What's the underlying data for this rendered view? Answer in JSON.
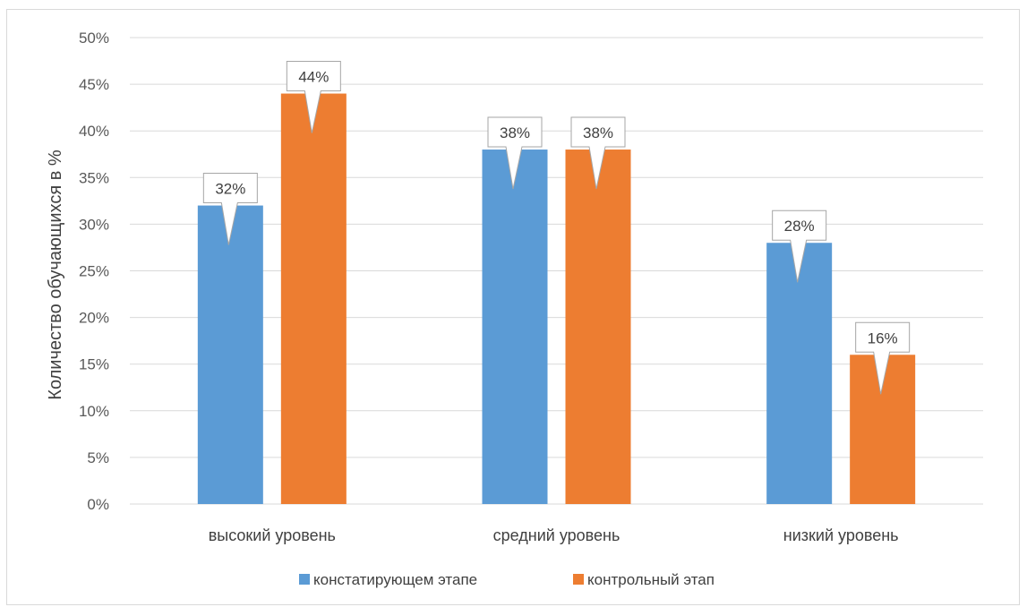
{
  "chart_data": {
    "type": "bar",
    "title": "",
    "xlabel": "",
    "ylabel": "Количество обучающихся в %",
    "ylim": [
      0,
      50
    ],
    "ytick_step": 5,
    "ytick_format": "percent",
    "grid": true,
    "legend_position": "bottom",
    "categories": [
      "высокий уровень",
      "средний уровень",
      "низкий уровень"
    ],
    "series": [
      {
        "name": "констатирующем этапе",
        "values": [
          32,
          38,
          28
        ],
        "color": "#5b9bd5"
      },
      {
        "name": "контрольный этап",
        "values": [
          44,
          38,
          16
        ],
        "color": "#ed7d31"
      }
    ],
    "data_labels": [
      [
        "32%",
        "38%",
        "28%"
      ],
      [
        "44%",
        "38%",
        "16%"
      ]
    ]
  }
}
